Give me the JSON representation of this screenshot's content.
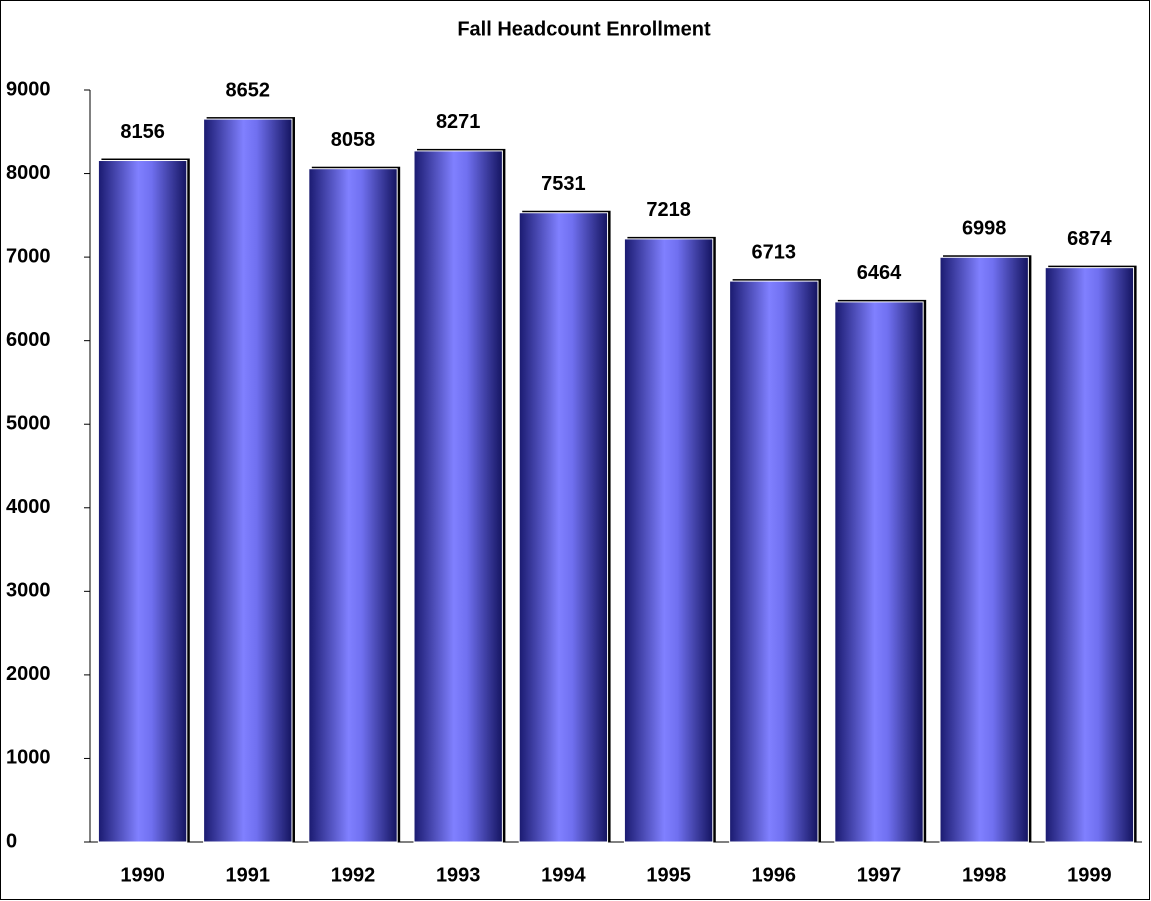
{
  "chart_data": {
    "type": "bar",
    "title": "Fall Headcount Enrollment",
    "categories": [
      "1990",
      "1991",
      "1992",
      "1993",
      "1994",
      "1995",
      "1996",
      "1997",
      "1998",
      "1999"
    ],
    "values": [
      8156,
      8652,
      8058,
      8271,
      7531,
      7218,
      6713,
      6464,
      6998,
      6874
    ],
    "color": "#7f7fff",
    "ylim": [
      0,
      9000
    ],
    "yticks": [
      0,
      1000,
      2000,
      3000,
      4000,
      5000,
      6000,
      7000,
      8000,
      9000
    ],
    "grid": false
  }
}
